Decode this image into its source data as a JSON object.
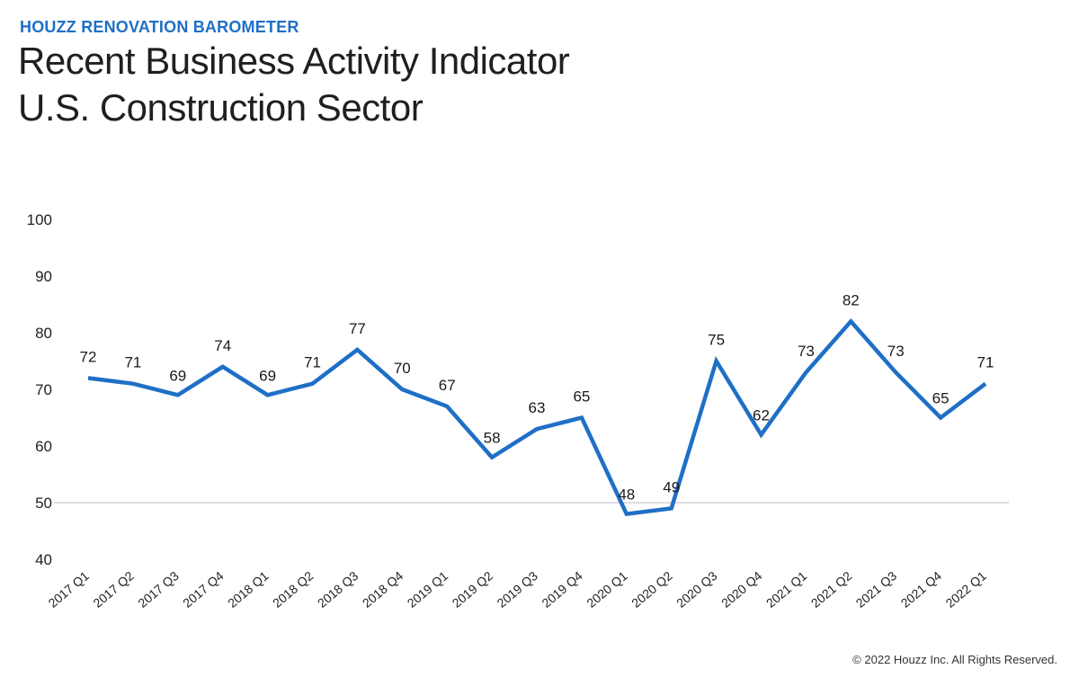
{
  "header": {
    "kicker": "HOUZZ RENOVATION BAROMETER",
    "title_line_1": "Recent Business Activity Indicator",
    "title_line_2": "U.S. Construction Sector"
  },
  "footer": {
    "copyright_symbol": "©",
    "copyright_year": "2022",
    "copyright_text": "Houzz Inc. All Rights Reserved."
  },
  "colors": {
    "accent": "#1f6fc6",
    "line": "#1f6fc6",
    "baseline": "#c8c8c8"
  },
  "chart_data": {
    "type": "line",
    "title": "Recent Business Activity Indicator U.S. Construction Sector",
    "xlabel": "",
    "ylabel": "",
    "ylim": [
      40,
      100
    ],
    "yticks": [
      40,
      50,
      60,
      70,
      80,
      90,
      100
    ],
    "baseline_at": 50,
    "grid": false,
    "legend": "none",
    "categories": [
      "2017 Q1",
      "2017 Q2",
      "2017 Q3",
      "2017 Q4",
      "2018 Q1",
      "2018 Q2",
      "2018 Q3",
      "2018 Q4",
      "2019 Q1",
      "2019 Q2",
      "2019 Q3",
      "2019 Q4",
      "2020 Q1",
      "2020 Q2",
      "2020 Q3",
      "2020 Q4",
      "2021 Q1",
      "2021 Q2",
      "2021 Q3",
      "2021 Q4",
      "2022 Q1"
    ],
    "series": [
      {
        "values": [
          72,
          71,
          69,
          74,
          69,
          71,
          77,
          70,
          67,
          58,
          63,
          65,
          48,
          49,
          75,
          62,
          73,
          82,
          73,
          65,
          71
        ]
      }
    ]
  }
}
